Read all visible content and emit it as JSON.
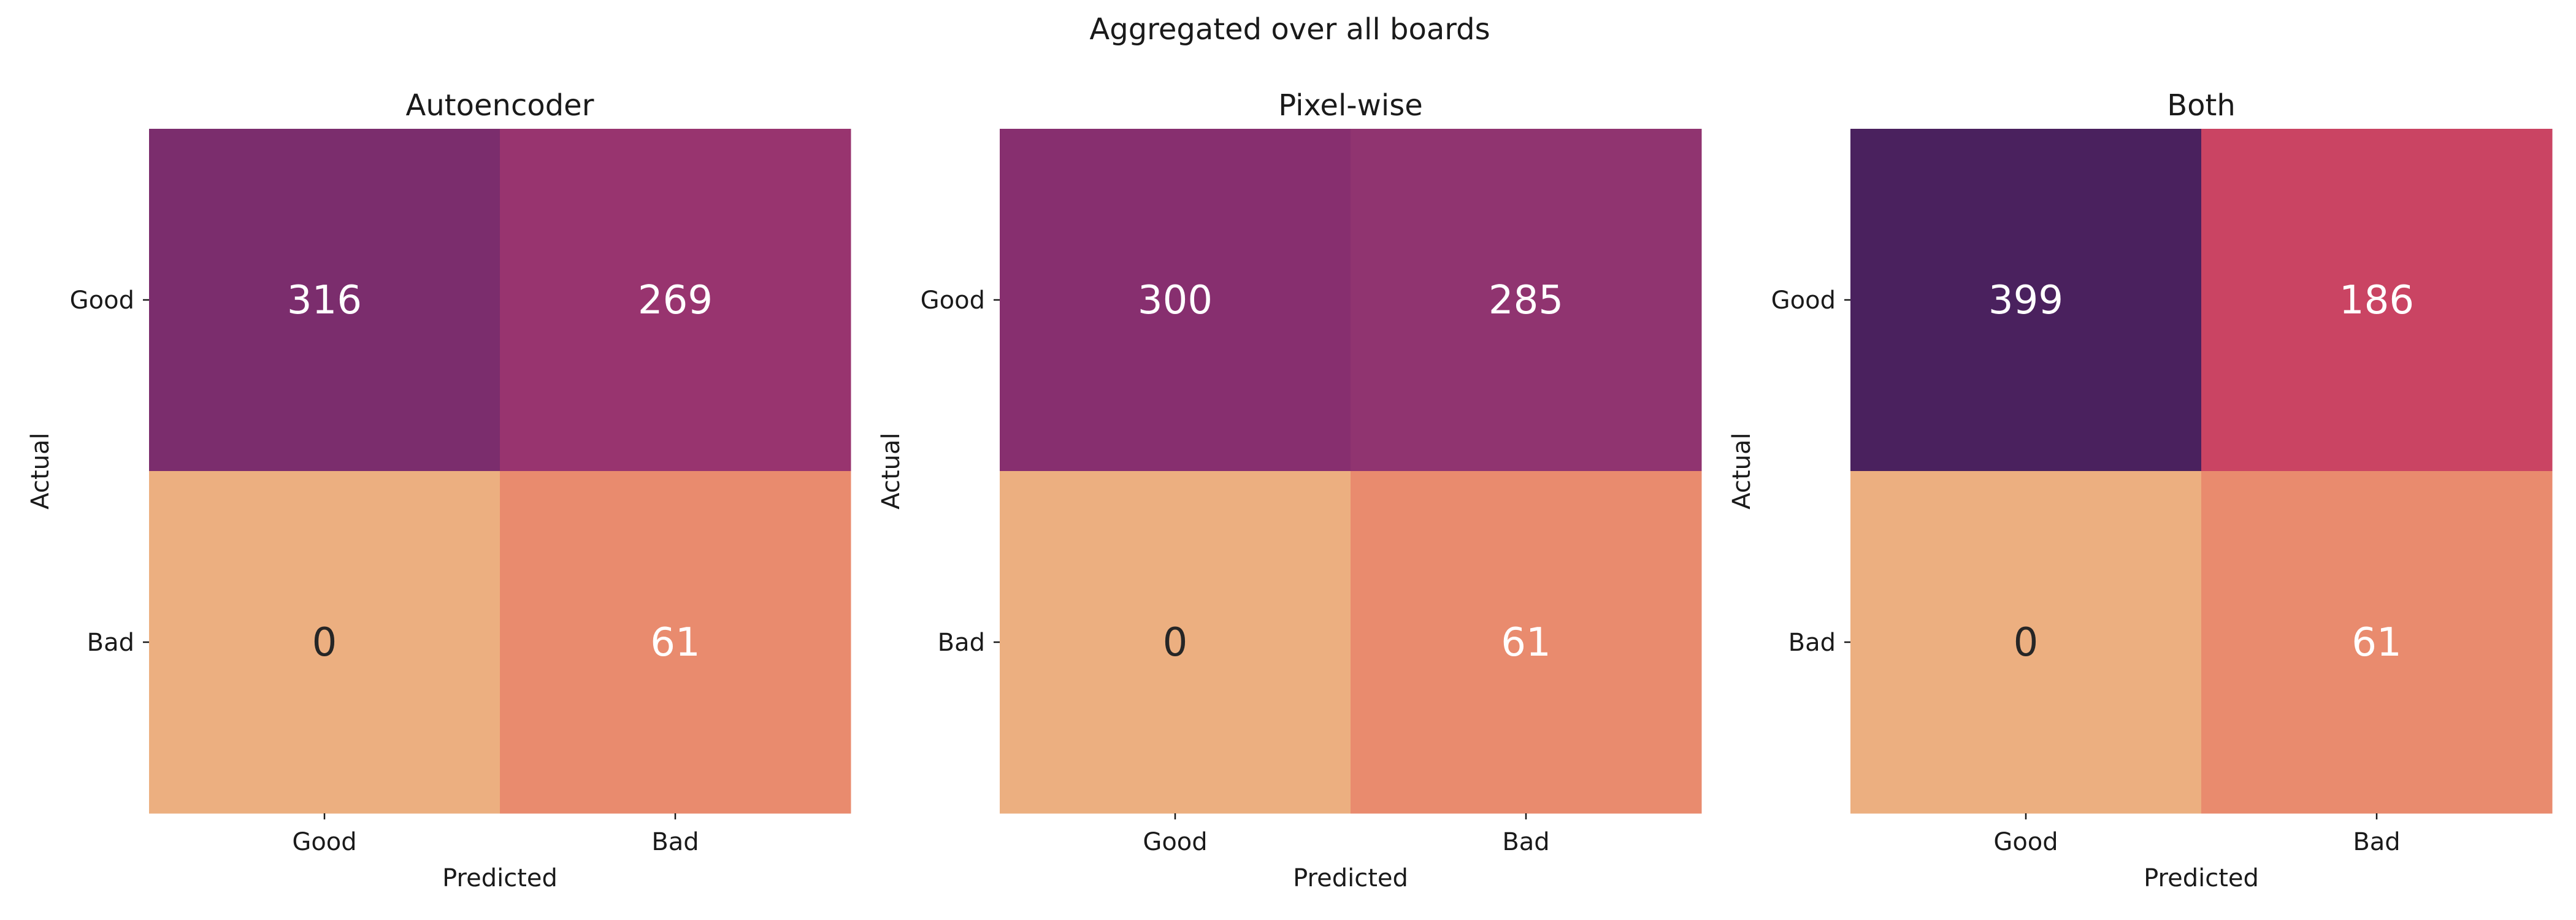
{
  "figure": {
    "title": "Aggregated over all boards"
  },
  "chart_data": [
    {
      "type": "heatmap",
      "title": "Autoencoder",
      "xlabel": "Predicted",
      "ylabel": "Actual",
      "x_categories": [
        "Good",
        "Bad"
      ],
      "y_categories": [
        "Good",
        "Bad"
      ],
      "values": [
        [
          316,
          269
        ],
        [
          0,
          61
        ]
      ],
      "colormap": "flare",
      "colorbar": false,
      "annotations": true,
      "cell_colors": [
        [
          "#7b2d6d",
          "#98346f"
        ],
        [
          "#ecaf80",
          "#e98b6e"
        ]
      ],
      "annotation_colors": [
        [
          "#ffffff",
          "#ffffff"
        ],
        [
          "#262626",
          "#ffffff"
        ]
      ]
    },
    {
      "type": "heatmap",
      "title": "Pixel-wise",
      "xlabel": "Predicted",
      "ylabel": "Actual",
      "x_categories": [
        "Good",
        "Bad"
      ],
      "y_categories": [
        "Good",
        "Bad"
      ],
      "values": [
        [
          300,
          285
        ],
        [
          0,
          61
        ]
      ],
      "colormap": "flare",
      "colorbar": false,
      "annotations": true,
      "cell_colors": [
        [
          "#872f6f",
          "#903470"
        ],
        [
          "#ecaf80",
          "#e98b6e"
        ]
      ],
      "annotation_colors": [
        [
          "#ffffff",
          "#ffffff"
        ],
        [
          "#262626",
          "#ffffff"
        ]
      ]
    },
    {
      "type": "heatmap",
      "title": "Both",
      "xlabel": "Predicted",
      "ylabel": "Actual",
      "x_categories": [
        "Good",
        "Bad"
      ],
      "y_categories": [
        "Good",
        "Bad"
      ],
      "values": [
        [
          399,
          186
        ],
        [
          0,
          61
        ]
      ],
      "colormap": "flare",
      "colorbar": false,
      "annotations": true,
      "cell_colors": [
        [
          "#4a215e",
          "#ca4463"
        ],
        [
          "#ecaf80",
          "#e98b6e"
        ]
      ],
      "annotation_colors": [
        [
          "#ffffff",
          "#ffffff"
        ],
        [
          "#262626",
          "#ffffff"
        ]
      ]
    }
  ]
}
